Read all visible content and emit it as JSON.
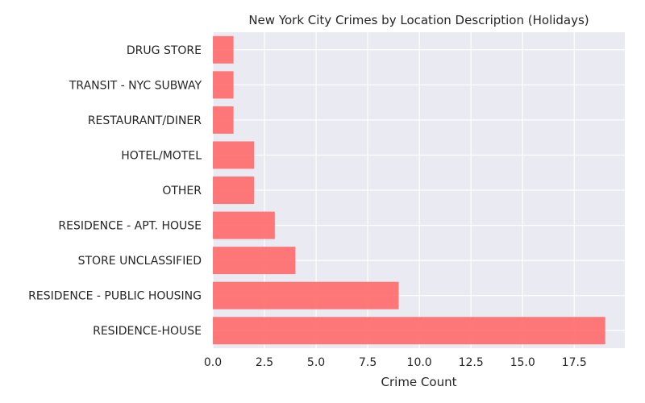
{
  "chart_data": {
    "type": "bar",
    "orientation": "horizontal",
    "title": "New York City Crimes by Location Description (Holidays)",
    "xlabel": "Crime Count",
    "ylabel": "",
    "categories": [
      "RESIDENCE-HOUSE",
      "RESIDENCE - PUBLIC HOUSING",
      "STORE UNCLASSIFIED",
      "RESIDENCE - APT. HOUSE",
      "OTHER",
      "HOTEL/MOTEL",
      "RESTAURANT/DINER",
      "TRANSIT - NYC SUBWAY",
      "DRUG STORE"
    ],
    "values": [
      19,
      9,
      4,
      3,
      2,
      2,
      1,
      1,
      1
    ],
    "xlim": [
      0,
      19.95
    ],
    "xticks": [
      "0.0",
      "2.5",
      "5.0",
      "7.5",
      "10.0",
      "12.5",
      "15.0",
      "17.5"
    ],
    "xtick_values": [
      0,
      2.5,
      5,
      7.5,
      10,
      12.5,
      15,
      17.5
    ],
    "grid": true,
    "colors": {
      "bar": "#ff6666",
      "plot_background": "#eaeaf2",
      "grid": "#ffffff",
      "text": "#262626"
    }
  }
}
